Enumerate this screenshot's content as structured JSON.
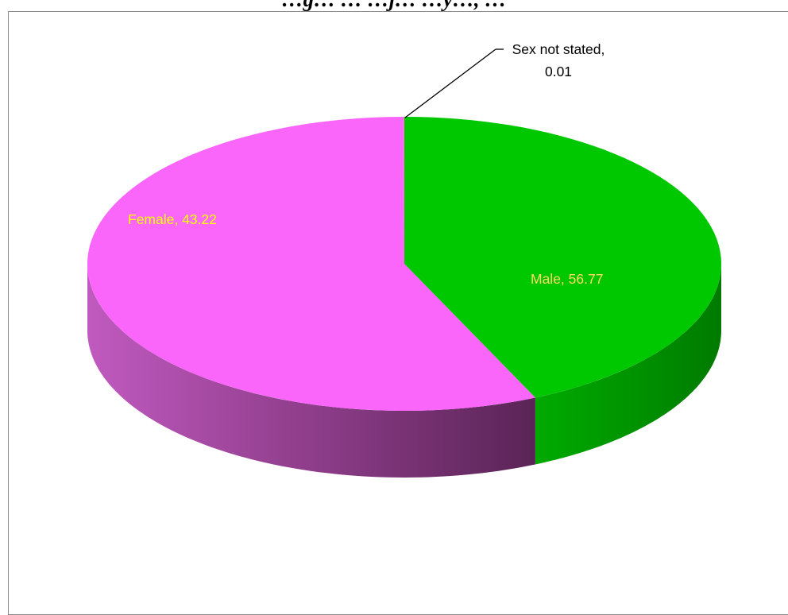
{
  "chart_data": {
    "type": "pie",
    "title": "…g… … …j… …y…, …",
    "slices": [
      {
        "name": "Female",
        "value": 43.22,
        "label": "Female, 43.22",
        "color": "#00c800",
        "label_color": "#ffff00"
      },
      {
        "name": "Male",
        "value": 56.77,
        "label": "Male, 56.77",
        "color": "#f966f9",
        "label_color": "#ffd966"
      },
      {
        "name": "Sex not stated",
        "value": 0.01,
        "label_line1": "Sex not stated,",
        "label_line2": "0.01",
        "color": "#ff9900",
        "label_color": "#000000"
      }
    ],
    "three_d": true,
    "legend": "none"
  }
}
